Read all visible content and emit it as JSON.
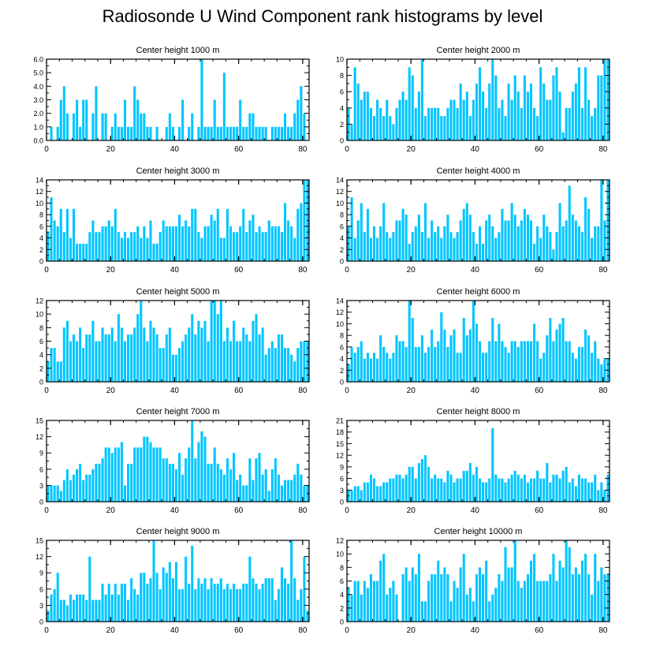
{
  "title": "Radiosonde U Wind Component rank histograms by level",
  "colors": {
    "bar": "#00c5ff",
    "axis": "#000000",
    "background": "#ffffff"
  },
  "chart_data": [
    {
      "type": "bar",
      "title": "Center height 1000 m",
      "xlim": [
        0,
        82
      ],
      "ylim": [
        0,
        6
      ],
      "yticks": [
        0,
        1,
        2,
        3,
        4,
        5,
        6
      ],
      "ytick_labels": [
        "0.0",
        "1.0",
        "2.0",
        "3.0",
        "4.0",
        "5.0",
        "6.0"
      ],
      "xticks": [
        0,
        20,
        40,
        60,
        80
      ],
      "values": [
        0,
        1,
        0,
        1,
        3,
        4,
        2,
        0,
        2,
        3,
        1,
        3,
        3,
        0,
        2,
        4,
        0,
        2,
        2,
        0,
        1,
        2,
        1,
        1,
        3,
        1,
        1,
        4,
        3,
        2,
        2,
        1,
        1,
        0,
        1,
        0,
        0,
        1,
        2,
        1,
        0,
        1,
        3,
        0,
        1,
        2,
        0,
        1,
        6,
        1,
        1,
        1,
        3,
        1,
        1,
        5,
        1,
        1,
        1,
        1,
        3,
        1,
        1,
        2,
        2,
        1,
        1,
        1,
        1,
        0,
        1,
        1,
        1,
        1,
        2,
        1,
        1,
        2,
        3,
        4,
        2,
        0
      ]
    },
    {
      "type": "bar",
      "title": "Center height 2000 m",
      "xlim": [
        0,
        82
      ],
      "ylim": [
        0,
        10
      ],
      "yticks": [
        0,
        2,
        4,
        6,
        8,
        10
      ],
      "ytick_labels": [
        "0",
        "2",
        "4",
        "6",
        "8",
        "10"
      ],
      "xticks": [
        0,
        20,
        40,
        60,
        80
      ],
      "values": [
        4,
        2,
        9,
        7,
        5,
        6,
        6,
        4,
        3,
        5,
        4,
        3,
        5,
        3,
        2,
        4,
        5,
        6,
        5,
        9,
        8,
        4,
        6,
        10,
        3,
        4,
        4,
        4,
        4,
        3,
        3,
        4,
        5,
        5,
        4,
        7,
        5,
        6,
        3,
        5,
        7,
        9,
        6,
        4,
        7,
        10,
        8,
        4,
        5,
        3,
        7,
        5,
        8,
        6,
        4,
        8,
        6,
        7,
        4,
        3,
        9,
        7,
        5,
        5,
        8,
        9,
        6,
        1,
        4,
        4,
        6,
        7,
        9,
        4,
        9,
        5,
        3,
        4,
        8,
        8,
        10,
        10
      ]
    },
    {
      "type": "bar",
      "title": "Center height 3000 m",
      "xlim": [
        0,
        82
      ],
      "ylim": [
        0,
        14
      ],
      "yticks": [
        0,
        2,
        4,
        6,
        8,
        10,
        12,
        14
      ],
      "ytick_labels": [
        "0",
        "2",
        "4",
        "6",
        "8",
        "10",
        "12",
        "14"
      ],
      "xticks": [
        0,
        20,
        40,
        60,
        80
      ],
      "values": [
        5,
        11,
        7,
        6,
        9,
        5,
        9,
        4,
        9,
        3,
        3,
        3,
        3,
        5,
        7,
        5,
        5,
        6,
        6,
        7,
        6,
        9,
        5,
        4,
        5,
        4,
        5,
        5,
        6,
        4,
        6,
        4,
        7,
        3,
        3,
        5,
        7,
        6,
        6,
        6,
        6,
        8,
        6,
        7,
        6,
        9,
        9,
        5,
        4,
        6,
        6,
        8,
        7,
        9,
        4,
        4,
        9,
        6,
        5,
        5,
        6,
        9,
        5,
        7,
        8,
        5,
        6,
        5,
        5,
        7,
        6,
        6,
        6,
        5,
        10,
        7,
        6,
        4,
        9,
        10,
        14,
        14
      ]
    },
    {
      "type": "bar",
      "title": "Center height 4000 m",
      "xlim": [
        0,
        82
      ],
      "ylim": [
        0,
        14
      ],
      "yticks": [
        0,
        2,
        4,
        6,
        8,
        10,
        12,
        14
      ],
      "ytick_labels": [
        "0",
        "2",
        "4",
        "6",
        "8",
        "10",
        "12",
        "14"
      ],
      "xticks": [
        0,
        20,
        40,
        60,
        80
      ],
      "values": [
        6,
        11,
        4,
        7,
        10,
        5,
        9,
        4,
        6,
        4,
        6,
        10,
        5,
        4,
        5,
        7,
        7,
        9,
        8,
        3,
        5,
        6,
        8,
        5,
        10,
        4,
        7,
        5,
        6,
        4,
        6,
        8,
        5,
        4,
        5,
        7,
        9,
        10,
        8,
        5,
        3,
        6,
        3,
        7,
        8,
        6,
        4,
        5,
        9,
        7,
        7,
        10,
        8,
        6,
        7,
        9,
        8,
        7,
        3,
        6,
        4,
        8,
        6,
        5,
        2,
        5,
        10,
        6,
        7,
        13,
        8,
        7,
        6,
        5,
        11,
        9,
        4,
        6,
        6,
        14,
        7,
        14
      ]
    },
    {
      "type": "bar",
      "title": "Center height 5000 m",
      "xlim": [
        0,
        82
      ],
      "ylim": [
        0,
        12
      ],
      "yticks": [
        0,
        2,
        4,
        6,
        8,
        10,
        12
      ],
      "ytick_labels": [
        "0",
        "2",
        "4",
        "6",
        "8",
        "10",
        "12"
      ],
      "xticks": [
        0,
        20,
        40,
        60,
        80
      ],
      "values": [
        3,
        5,
        5,
        3,
        3,
        8,
        9,
        6,
        7,
        6,
        8,
        5,
        7,
        7,
        9,
        6,
        6,
        8,
        7,
        7,
        8,
        6,
        10,
        8,
        6,
        7,
        7,
        8,
        10,
        12,
        8,
        6,
        9,
        8,
        7,
        5,
        5,
        7,
        8,
        4,
        4,
        5,
        6,
        7,
        8,
        10,
        7,
        9,
        8,
        9,
        6,
        12,
        12,
        10,
        12,
        6,
        8,
        6,
        9,
        6,
        6,
        8,
        7,
        6,
        9,
        10,
        7,
        8,
        4,
        5,
        6,
        5,
        7,
        7,
        5,
        5,
        4,
        3,
        5,
        6,
        6,
        6
      ]
    },
    {
      "type": "bar",
      "title": "Center height 6000 m",
      "xlim": [
        0,
        82
      ],
      "ylim": [
        0,
        14
      ],
      "yticks": [
        0,
        2,
        4,
        6,
        8,
        10,
        12,
        14
      ],
      "ytick_labels": [
        "0",
        "2",
        "4",
        "6",
        "8",
        "10",
        "12",
        "14"
      ],
      "xticks": [
        0,
        20,
        40,
        60,
        80
      ],
      "values": [
        3,
        6,
        5,
        6,
        7,
        4,
        5,
        4,
        5,
        4,
        8,
        6,
        5,
        4,
        5,
        8,
        7,
        7,
        6,
        14,
        11,
        6,
        6,
        8,
        5,
        6,
        9,
        6,
        7,
        12,
        9,
        6,
        8,
        9,
        5,
        5,
        11,
        8,
        9,
        14,
        10,
        7,
        5,
        5,
        7,
        11,
        7,
        10,
        7,
        6,
        5,
        7,
        7,
        6,
        7,
        7,
        7,
        7,
        10,
        7,
        4,
        5,
        8,
        11,
        7,
        9,
        10,
        11,
        7,
        7,
        5,
        4,
        6,
        6,
        9,
        8,
        5,
        7,
        4,
        3,
        4,
        4
      ]
    },
    {
      "type": "bar",
      "title": "Center height 7000 m",
      "xlim": [
        0,
        82
      ],
      "ylim": [
        0,
        15
      ],
      "yticks": [
        0,
        3,
        6,
        9,
        12,
        15
      ],
      "ytick_labels": [
        "0",
        "3",
        "6",
        "9",
        "12",
        "15"
      ],
      "xticks": [
        0,
        20,
        40,
        60,
        80
      ],
      "values": [
        3,
        3,
        3,
        3,
        2,
        4,
        6,
        4,
        5,
        6,
        7,
        4,
        5,
        5,
        6,
        7,
        7,
        8,
        10,
        10,
        9,
        10,
        10,
        11,
        3,
        7,
        7,
        10,
        10,
        10,
        12,
        12,
        11,
        10,
        10,
        10,
        8,
        8,
        7,
        7,
        6,
        9,
        5,
        8,
        10,
        15,
        8,
        11,
        13,
        12,
        7,
        7,
        10,
        7,
        6,
        5,
        8,
        6,
        9,
        4,
        5,
        3,
        3,
        8,
        4,
        8,
        9,
        5,
        6,
        2,
        6,
        8,
        5,
        3,
        4,
        4,
        4,
        5,
        7,
        5,
        3,
        3
      ]
    },
    {
      "type": "bar",
      "title": "Center height 8000 m",
      "xlim": [
        0,
        82
      ],
      "ylim": [
        0,
        21
      ],
      "yticks": [
        0,
        3,
        6,
        9,
        12,
        15,
        18,
        21
      ],
      "ytick_labels": [
        "0",
        "3",
        "6",
        "9",
        "12",
        "15",
        "18",
        "21"
      ],
      "xticks": [
        0,
        20,
        40,
        60,
        80
      ],
      "values": [
        3,
        3,
        4,
        4,
        3,
        5,
        5,
        7,
        6,
        4,
        4,
        5,
        5,
        6,
        6,
        7,
        7,
        6,
        7,
        9,
        9,
        6,
        10,
        11,
        12,
        9,
        6,
        7,
        6,
        6,
        5,
        8,
        7,
        5,
        6,
        6,
        8,
        8,
        10,
        7,
        9,
        6,
        5,
        5,
        6,
        19,
        7,
        6,
        6,
        5,
        6,
        7,
        8,
        7,
        6,
        7,
        5,
        6,
        6,
        8,
        6,
        6,
        10,
        5,
        7,
        7,
        6,
        8,
        9,
        5,
        6,
        4,
        7,
        6,
        6,
        5,
        5,
        7,
        3,
        5,
        3,
        7
      ]
    },
    {
      "type": "bar",
      "title": "Center height 9000 m",
      "xlim": [
        0,
        82
      ],
      "ylim": [
        0,
        15
      ],
      "yticks": [
        0,
        3,
        6,
        9,
        12,
        15
      ],
      "ytick_labels": [
        "0",
        "3",
        "6",
        "9",
        "12",
        "15"
      ],
      "xticks": [
        0,
        20,
        40,
        60,
        80
      ],
      "values": [
        2,
        5,
        6,
        9,
        4,
        4,
        3,
        5,
        4,
        5,
        5,
        5,
        4,
        12,
        4,
        4,
        4,
        7,
        5,
        7,
        5,
        7,
        5,
        7,
        7,
        4,
        8,
        6,
        5,
        9,
        9,
        7,
        8,
        15,
        9,
        6,
        10,
        9,
        11,
        8,
        11,
        6,
        6,
        12,
        7,
        14,
        6,
        8,
        7,
        8,
        6,
        8,
        7,
        7,
        8,
        6,
        7,
        6,
        7,
        6,
        6,
        7,
        7,
        12,
        8,
        7,
        6,
        7,
        8,
        8,
        8,
        4,
        6,
        10,
        8,
        7,
        15,
        8,
        4,
        6,
        12,
        2
      ]
    },
    {
      "type": "bar",
      "title": "Center height 10000 m",
      "xlim": [
        0,
        82
      ],
      "ylim": [
        0,
        12
      ],
      "yticks": [
        0,
        2,
        4,
        6,
        8,
        10,
        12
      ],
      "ytick_labels": [
        "0",
        "2",
        "4",
        "6",
        "8",
        "10",
        "12"
      ],
      "xticks": [
        0,
        20,
        40,
        60,
        80
      ],
      "values": [
        5,
        4,
        6,
        6,
        4,
        6,
        5,
        7,
        6,
        6,
        9,
        10,
        4,
        5,
        6,
        4,
        0,
        7,
        8,
        6,
        8,
        7,
        10,
        3,
        3,
        6,
        7,
        7,
        9,
        7,
        8,
        7,
        3,
        6,
        5,
        8,
        10,
        4,
        5,
        3,
        7,
        8,
        7,
        9,
        3,
        4,
        5,
        7,
        6,
        11,
        8,
        8,
        12,
        6,
        5,
        6,
        7,
        9,
        10,
        6,
        6,
        6,
        6,
        7,
        10,
        6,
        9,
        8,
        12,
        11,
        7,
        8,
        7,
        9,
        10,
        7,
        4,
        10,
        6,
        8,
        7,
        7
      ]
    }
  ]
}
